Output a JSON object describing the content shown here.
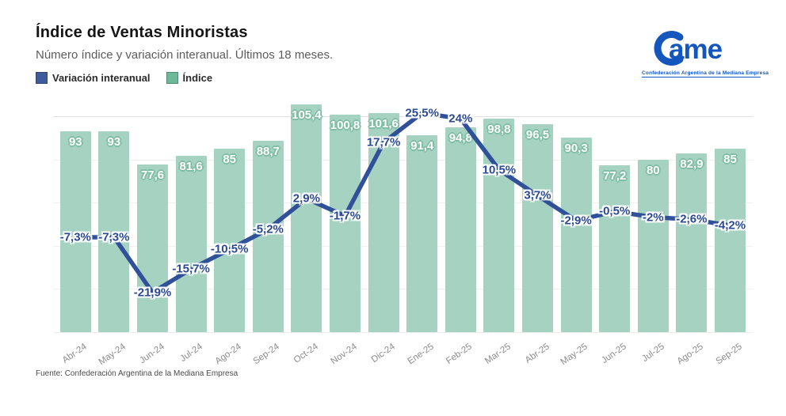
{
  "header": {
    "title": "Índice de Ventas Minoristas",
    "subtitle": "Número índice y variación interanual. Últimos 18 meses.",
    "legend": [
      {
        "label": "Variación interanual",
        "color": "#3e5c9c"
      },
      {
        "label": "Índice",
        "color": "#6cb898"
      }
    ]
  },
  "logo": {
    "text": "Came",
    "tagline": "Confederación Argentina de la Mediana Empresa",
    "color": "#1356bd"
  },
  "footer": {
    "source": "Fuente: Confederación Argentina de la Mediana Empresa"
  },
  "chart_data": {
    "type": "bar+line combo",
    "title": "Índice de Ventas Minoristas",
    "subtitle": "Número índice y variación interanual. Últimos 18 meses.",
    "categories": [
      "Abr-24",
      "May-24",
      "Jun-24",
      "Jul-24",
      "Ago-24",
      "Sep-24",
      "Oct-24",
      "Nov-24",
      "Dic-24",
      "Ene-25",
      "Feb-25",
      "Mar-25",
      "Abr-25",
      "May-25",
      "Jun-25",
      "Jul-25",
      "Ago-25",
      "Sep-25"
    ],
    "series": [
      {
        "name": "Índice",
        "type": "bar",
        "color": "#a6d2c1",
        "values": [
          93,
          93,
          77.6,
          81.6,
          85,
          88.7,
          105.4,
          100.8,
          101.6,
          91.4,
          94.8,
          98.8,
          96.5,
          90.3,
          77.2,
          80,
          82.9,
          85
        ],
        "labels": [
          "93",
          "93",
          "77,6",
          "81,6",
          "85",
          "88,7",
          "105,4",
          "100,8",
          "101,6",
          "91,4",
          "94,8",
          "98,8",
          "96,5",
          "90,3",
          "77,2",
          "80",
          "82,9",
          "85"
        ]
      },
      {
        "name": "Variación interanual",
        "type": "line",
        "color": "#30509a",
        "label_color": "#2c4a94",
        "values": [
          -7.3,
          -7.3,
          -21.9,
          -15.7,
          -10.5,
          -5.2,
          2.9,
          -1.7,
          17.7,
          25.5,
          24,
          10.5,
          3.7,
          -2.9,
          -0.5,
          -2,
          -2.6,
          -4.2
        ],
        "labels": [
          "-7,3%",
          "-7,3%",
          "-21,9%",
          "-15,7%",
          "-10,5%",
          "-5,2%",
          "2,9%",
          "-1,7%",
          "17,7%",
          "25,5%",
          "24%",
          "10,5%",
          "3,7%",
          "-2,9%",
          "-0,5%",
          "-2%",
          "-2,6%",
          "-4,2%"
        ]
      }
    ],
    "layout": {
      "legend_position": "top-left",
      "grid": "faint horizontal gridlines",
      "gridline_values": [
        20,
        40,
        60,
        80,
        100
      ],
      "bar_axis_range": [
        0,
        110
      ],
      "line_axis_range_pct": [
        -30,
        30
      ],
      "x_labels_rotated": true
    }
  }
}
